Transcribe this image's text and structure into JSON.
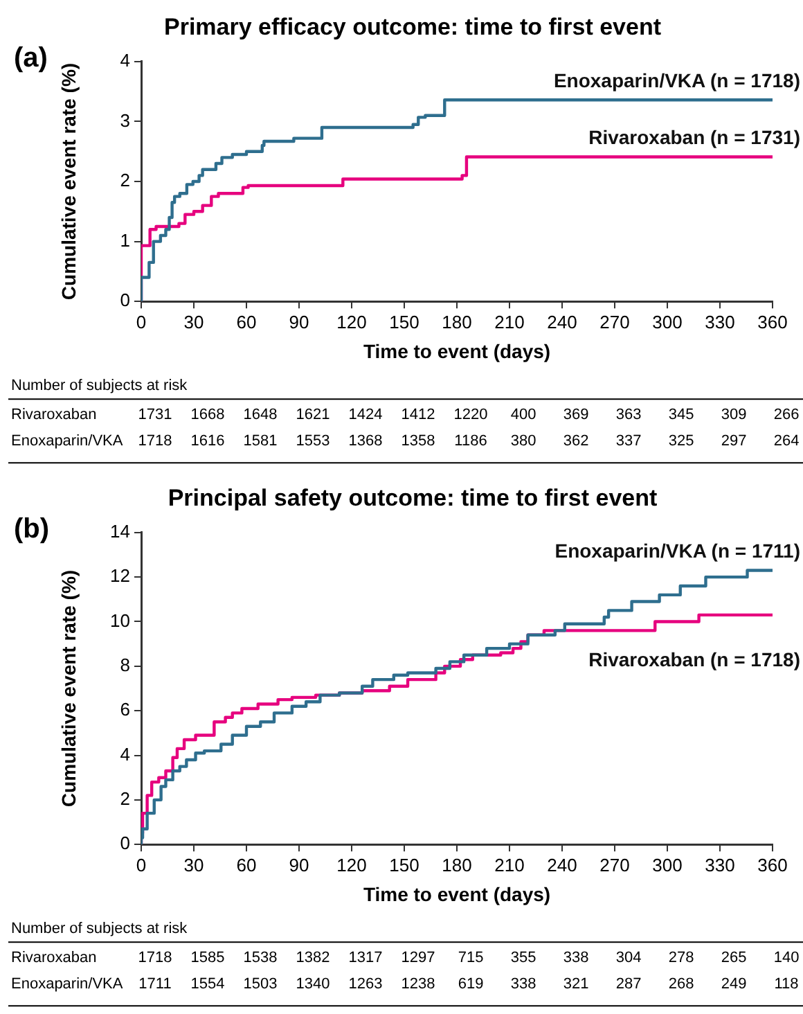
{
  "chart_data": [
    {
      "type": "step",
      "title": "Primary efficacy outcome: time to first event",
      "xlabel": "Time to event (days)",
      "ylabel": "Cumulative event rate (%)",
      "xlim": [
        0,
        360
      ],
      "xticks": [
        0,
        30,
        60,
        90,
        120,
        150,
        180,
        210,
        240,
        270,
        300,
        330,
        360
      ],
      "ylim": [
        0,
        4
      ],
      "yticks": [
        0,
        1,
        2,
        3,
        4
      ],
      "grid": false,
      "series": [
        {
          "name": "Enoxaparin/VKA (n = 1718)",
          "color": "#2e6e8e",
          "x": [
            0,
            4.5,
            7,
            11,
            14,
            16,
            17.6,
            19,
            22,
            26,
            29.5,
            33,
            35,
            42.6,
            46,
            52,
            60,
            69,
            70,
            87,
            103,
            155,
            158,
            162,
            173,
            249.7,
            360
          ],
          "values": [
            0,
            0.4,
            0.65,
            1.0,
            1.1,
            1.2,
            1.4,
            1.65,
            1.75,
            1.8,
            1.95,
            2.0,
            2.1,
            2.2,
            2.3,
            2.4,
            2.45,
            2.5,
            2.6,
            2.67,
            2.72,
            2.9,
            2.95,
            3.07,
            3.1,
            3.36,
            3.36
          ]
        },
        {
          "name": "Rivaroxaban (n = 1731)",
          "color": "#e6007e",
          "x": [
            0,
            5,
            8.5,
            21.5,
            25,
            30,
            35,
            40,
            44,
            58,
            61,
            115,
            183,
            185.5,
            304,
            360
          ],
          "values": [
            0,
            0.93,
            1.2,
            1.25,
            1.3,
            1.45,
            1.5,
            1.6,
            1.75,
            1.8,
            1.9,
            1.93,
            2.04,
            2.1,
            2.41,
            2.41
          ]
        }
      ],
      "annotations": [
        "(a)",
        "Number of subjects at risk",
        "Rivaroxaban",
        "1731",
        "1668",
        "1648",
        "1621",
        "1424",
        "1412",
        "1220",
        "400",
        "369",
        "363",
        "345",
        "309",
        "266",
        "Enoxaparin/VKA",
        "1718",
        "1616",
        "1581",
        "1553",
        "1368",
        "1358",
        "1186",
        "380",
        "362",
        "337",
        "325",
        "297",
        "264"
      ]
    },
    {
      "type": "step",
      "title": "Principal safety outcome: time to first event",
      "xlabel": "Time to event (days)",
      "ylabel": "Cumulative event rate (%)",
      "xlim": [
        0,
        360
      ],
      "xticks": [
        0,
        30,
        60,
        90,
        120,
        150,
        180,
        210,
        240,
        270,
        300,
        330,
        360
      ],
      "ylim": [
        0,
        14
      ],
      "yticks": [
        0,
        2,
        4,
        6,
        8,
        10,
        12,
        14
      ],
      "grid": false,
      "series": [
        {
          "name": "Enoxaparin/VKA (n = 1711)",
          "color": "#2e6e8e",
          "x": [
            0,
            0.8,
            3.4,
            7.4,
            11.3,
            14,
            18,
            22,
            25.8,
            31,
            36,
            45.5,
            52,
            60,
            68,
            75.8,
            86,
            94,
            102,
            113,
            126,
            132,
            144,
            152,
            168,
            176,
            184,
            197,
            210,
            220.5,
            236,
            241.5,
            264,
            266.5,
            279.7,
            295.5,
            307.4,
            321.9,
            345.6,
            352.2,
            360
          ],
          "values": [
            0,
            0.3,
            0.7,
            1.4,
            2.0,
            2.6,
            2.9,
            3.3,
            3.5,
            3.8,
            4.1,
            4.2,
            4.5,
            4.9,
            5.3,
            5.5,
            5.9,
            6.2,
            6.4,
            6.7,
            6.8,
            7.1,
            7.4,
            7.6,
            7.7,
            7.9,
            8.2,
            8.5,
            8.8,
            9.0,
            9.4,
            9.6,
            9.9,
            10.2,
            10.5,
            10.9,
            11.2,
            11.6,
            12.0,
            12.3,
            12.3
          ]
        },
        {
          "name": "Rivaroxaban (n = 1718)",
          "color": "#e6007e",
          "x": [
            0,
            0.8,
            3.4,
            6,
            10,
            14,
            18,
            20.5,
            24.5,
            31,
            41.6,
            48,
            52,
            57.4,
            66.6,
            78,
            86,
            99.5,
            113,
            126,
            141.6,
            152,
            168,
            173,
            182,
            189,
            205,
            212,
            216.5,
            220.5,
            229.7,
            293,
            318,
            323,
            360
          ],
          "values": [
            0,
            0.5,
            1.4,
            2.2,
            2.8,
            3.0,
            3.3,
            3.9,
            4.3,
            4.7,
            4.9,
            5.5,
            5.7,
            5.9,
            6.1,
            6.3,
            6.5,
            6.6,
            6.7,
            6.8,
            6.9,
            7.1,
            7.4,
            7.7,
            8.0,
            8.3,
            8.5,
            8.6,
            8.8,
            9.1,
            9.4,
            9.6,
            10.0,
            10.3,
            10.3
          ]
        }
      ],
      "annotations": [
        "(b)",
        "Number of subjects at risk",
        "Rivaroxaban",
        "1718",
        "1585",
        "1538",
        "1382",
        "1317",
        "1297",
        "715",
        "355",
        "338",
        "304",
        "278",
        "265",
        "140",
        "Enoxaparin/VKA",
        "1711",
        "1554",
        "1503",
        "1340",
        "1263",
        "1238",
        "619",
        "338",
        "321",
        "287",
        "268",
        "249",
        "118"
      ]
    }
  ]
}
